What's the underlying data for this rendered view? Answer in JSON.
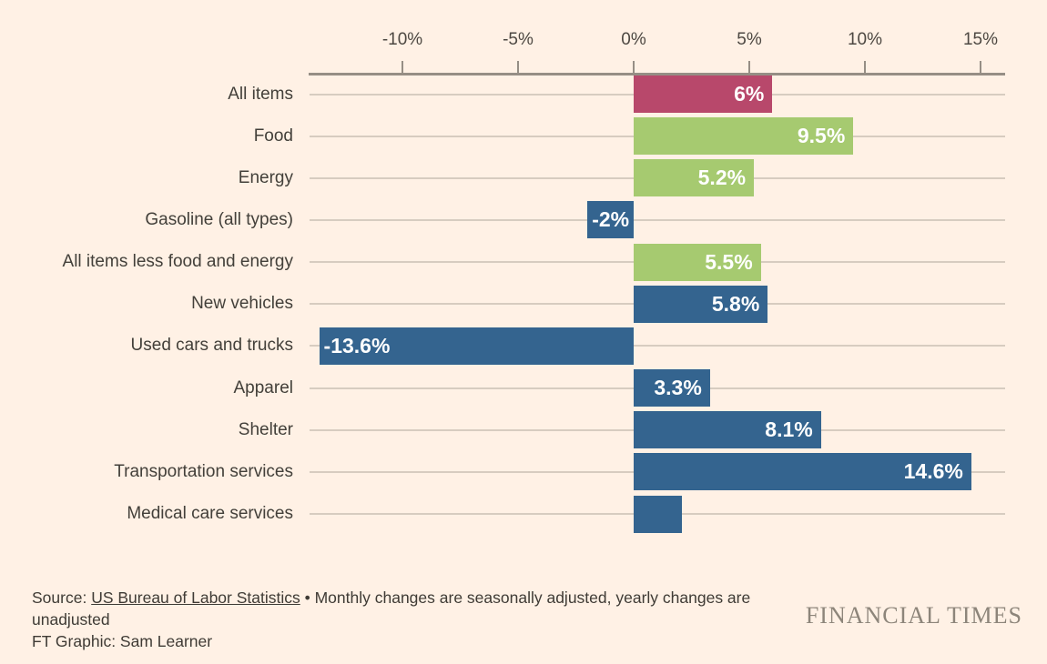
{
  "page": {
    "background_color": "#fff1e5"
  },
  "chart_data": {
    "type": "bar",
    "orientation": "horizontal",
    "title": "",
    "xlabel": "",
    "ylabel": "",
    "x_axis": {
      "unit": "%",
      "min": -14,
      "max": 16.1,
      "ticks": [
        {
          "label": "-10%",
          "value": -10
        },
        {
          "label": "-5%",
          "value": -5
        },
        {
          "label": "0%",
          "value": 0
        },
        {
          "label": "5%",
          "value": 5
        },
        {
          "label": "10%",
          "value": 10
        },
        {
          "label": "15%",
          "value": 15
        }
      ]
    },
    "grid": true,
    "legend": null,
    "rows": [
      {
        "category": "All items",
        "value": 6,
        "label": "6%",
        "color": "#b8486b"
      },
      {
        "category": "Food",
        "value": 9.5,
        "label": "9.5%",
        "color": "#a6ca70"
      },
      {
        "category": "Energy",
        "value": 5.2,
        "label": "5.2%",
        "color": "#a6ca70"
      },
      {
        "category": "Gasoline (all types)",
        "value": -2,
        "label": "-2%",
        "color": "#34648f"
      },
      {
        "category": "All items less food and energy",
        "value": 5.5,
        "label": "5.5%",
        "color": "#a6ca70"
      },
      {
        "category": "New vehicles",
        "value": 5.8,
        "label": "5.8%",
        "color": "#34648f"
      },
      {
        "category": "Used cars and trucks",
        "value": -13.6,
        "label": "-13.6%",
        "color": "#34648f"
      },
      {
        "category": "Apparel",
        "value": 3.3,
        "label": "3.3%",
        "color": "#34648f"
      },
      {
        "category": "Shelter",
        "value": 8.1,
        "label": "8.1%",
        "color": "#34648f"
      },
      {
        "category": "Transportation services",
        "value": 14.6,
        "label": "14.6%",
        "color": "#34648f"
      },
      {
        "category": "Medical care services",
        "value": 2.1,
        "label": "",
        "color": "#34648f"
      }
    ],
    "colors": {
      "all_items_accent": "#b8486b",
      "food_energy_accent": "#a6ca70",
      "other_categories": "#34648f",
      "axis": "#968e85",
      "gridline": "#d7ccc0",
      "value_text": "#ffffff"
    }
  },
  "footer": {
    "source_prefix": "Source: ",
    "source_link": "US Bureau of Labor Statistics",
    "source_rest": " • Monthly changes are seasonally adjusted, yearly changes are unadjusted",
    "credit": "FT Graphic: Sam Learner",
    "brand": "FINANCIAL TIMES"
  }
}
